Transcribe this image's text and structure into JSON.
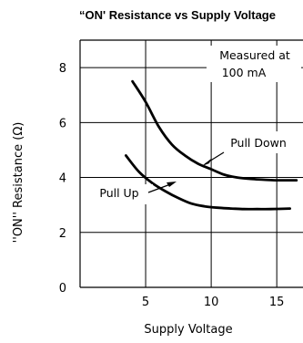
{
  "chart_data": {
    "type": "line",
    "title": "“ON' Resistance vs Supply Voltage",
    "xlabel": "Supply Voltage",
    "ylabel": "''ON'' Resistance (Ω)",
    "xlim": [
      0,
      17
    ],
    "ylim": [
      0,
      9
    ],
    "x_ticks": [
      5,
      10,
      15
    ],
    "y_ticks": [
      0,
      2,
      4,
      6,
      8
    ],
    "grid": true,
    "annotation": [
      "Measured at",
      "100 mA"
    ],
    "series": [
      {
        "name": "Pull Down",
        "x": [
          4.0,
          5.0,
          6.0,
          7.0,
          8.0,
          9.0,
          10.0,
          11.0,
          12.0,
          13.0,
          14.0,
          15.0,
          16.5
        ],
        "y": [
          7.5,
          6.75,
          5.85,
          5.2,
          4.8,
          4.5,
          4.3,
          4.1,
          4.0,
          3.95,
          3.92,
          3.9,
          3.9
        ]
      },
      {
        "name": "Pull Up",
        "x": [
          3.5,
          4.5,
          5.5,
          6.5,
          7.5,
          8.5,
          9.5,
          10.5,
          11.5,
          12.5,
          13.5,
          14.5,
          16.0
        ],
        "y": [
          4.8,
          4.2,
          3.8,
          3.5,
          3.25,
          3.05,
          2.95,
          2.9,
          2.87,
          2.85,
          2.85,
          2.85,
          2.87
        ]
      }
    ]
  }
}
